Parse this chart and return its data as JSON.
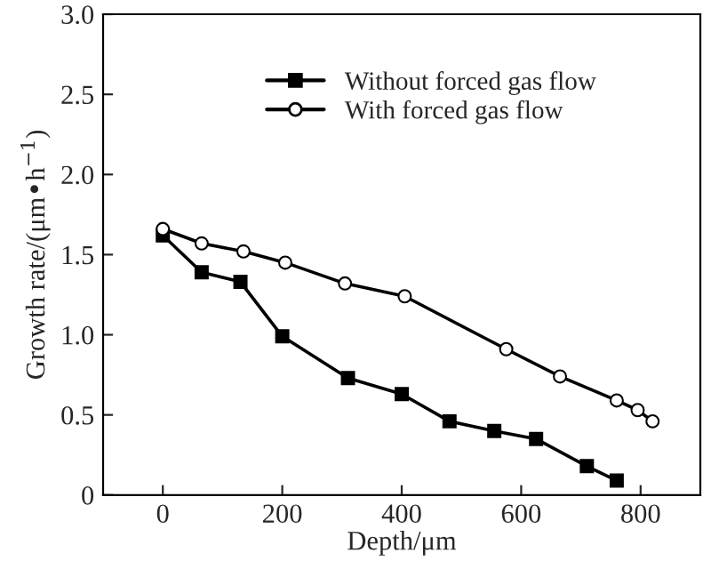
{
  "chart_data": {
    "type": "line",
    "xlabel": "Depth/μm",
    "ylabel": "Growth rate/(μm•h$^{−1}$)",
    "xlim": [
      -100,
      900
    ],
    "ylim": [
      0,
      3.0
    ],
    "xticks": [
      0,
      200,
      400,
      600,
      800
    ],
    "yticks": [
      0,
      {
        "value": 0.5,
        "label": "0.5"
      },
      {
        "value": 1.0,
        "label": "1.0"
      },
      {
        "value": 1.5,
        "label": "1.5"
      },
      {
        "value": 2.0,
        "label": "2.0"
      },
      {
        "value": 2.5,
        "label": "2.5"
      },
      {
        "value": 3.0,
        "label": "3.0"
      }
    ],
    "legend": "top",
    "grid": false,
    "series": [
      {
        "name": "Without forced gas flow",
        "color": "#000000",
        "marker": "square",
        "x": [
          0,
          65,
          130,
          200,
          310,
          400,
          480,
          555,
          625,
          710,
          760
        ],
        "values": [
          1.62,
          1.39,
          1.33,
          0.99,
          0.73,
          0.63,
          0.46,
          0.4,
          0.35,
          0.18,
          0.09
        ]
      },
      {
        "name": "With forced gas flow",
        "color": "#000000",
        "marker": "circle",
        "x": [
          0,
          65,
          135,
          205,
          305,
          405,
          575,
          665,
          760,
          795,
          820
        ],
        "values": [
          1.66,
          1.57,
          1.52,
          1.45,
          1.32,
          1.24,
          0.91,
          0.74,
          0.59,
          0.53,
          0.46
        ]
      }
    ]
  }
}
